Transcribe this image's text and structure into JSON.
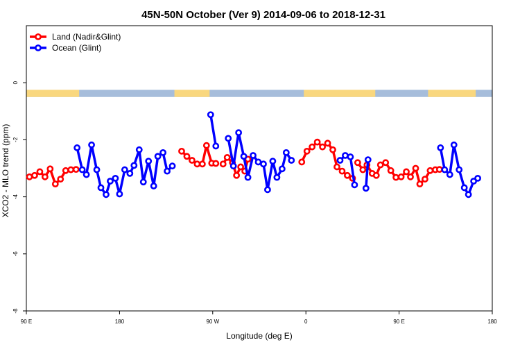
{
  "chart_data": {
    "type": "line",
    "title": "45N-50N October (Ver 9)   2014-09-06 to 2018-12-31",
    "xlabel": "Longitude (deg E)",
    "ylabel": "XCO2 - MLO trend (ppm)",
    "xlim": [
      90,
      540
    ],
    "ylim": [
      -8,
      2
    ],
    "x_ticks": [
      {
        "value": 90,
        "label": "90 E"
      },
      {
        "value": 180,
        "label": "180"
      },
      {
        "value": 270,
        "label": "90 W"
      },
      {
        "value": 360,
        "label": "0"
      },
      {
        "value": 450,
        "label": "90 E"
      },
      {
        "value": 540,
        "label": "180"
      }
    ],
    "y_ticks": [
      {
        "value": 0,
        "label": "0"
      },
      {
        "value": -2,
        "label": "-2"
      },
      {
        "value": -4,
        "label": "-4"
      },
      {
        "value": -6,
        "label": "-6"
      },
      {
        "value": -8,
        "label": "-8"
      }
    ],
    "legend_position": "top-left",
    "map_strip": {
      "y_range": [
        -0.5,
        -0.25
      ],
      "land_color": "#f9d77e",
      "ocean_color": "#a6bddb",
      "land_segments": [
        [
          90,
          141
        ],
        [
          233,
          267
        ],
        [
          358,
          427
        ],
        [
          478,
          524
        ]
      ]
    },
    "series": [
      {
        "name": "Land (Nadir&Glint)",
        "color": "#ff0000",
        "segments": [
          [
            [
              93,
              -3.3
            ],
            [
              98,
              -3.25
            ],
            [
              103,
              -3.12
            ],
            [
              108,
              -3.3
            ],
            [
              113,
              -3.02
            ],
            [
              118,
              -3.55
            ],
            [
              123,
              -3.38
            ],
            [
              128,
              -3.08
            ],
            [
              133,
              -3.05
            ],
            [
              138,
              -3.04
            ]
          ],
          [
            [
              240,
              -2.4
            ],
            [
              245,
              -2.58
            ],
            [
              250,
              -2.72
            ],
            [
              255,
              -2.85
            ],
            [
              260,
              -2.85
            ],
            [
              264,
              -2.2
            ],
            [
              269,
              -2.82
            ],
            [
              273,
              -2.83
            ]
          ],
          [
            [
              280,
              -2.85
            ],
            [
              284,
              -2.62
            ],
            [
              289,
              -2.8
            ],
            [
              293,
              -3.25
            ],
            [
              297,
              -2.95
            ],
            [
              301,
              -3.1
            ],
            [
              304,
              -2.68
            ]
          ],
          [
            [
              356,
              -2.78
            ],
            [
              361,
              -2.4
            ],
            [
              366,
              -2.25
            ],
            [
              371,
              -2.08
            ],
            [
              376,
              -2.25
            ],
            [
              381,
              -2.12
            ],
            [
              386,
              -2.35
            ],
            [
              390,
              -2.95
            ],
            [
              395,
              -3.1
            ],
            [
              400,
              -3.25
            ],
            [
              405,
              -3.35
            ]
          ],
          [
            [
              410,
              -2.8
            ],
            [
              415,
              -3.05
            ],
            [
              419,
              -2.88
            ],
            [
              424,
              -3.18
            ],
            [
              428,
              -3.25
            ],
            [
              432,
              -2.88
            ],
            [
              437,
              -2.8
            ],
            [
              442,
              -3.08
            ],
            [
              447,
              -3.32
            ],
            [
              452,
              -3.3
            ],
            [
              457,
              -3.12
            ],
            [
              461,
              -3.3
            ],
            [
              466,
              -3.0
            ],
            [
              470,
              -3.55
            ],
            [
              475,
              -3.38
            ],
            [
              480,
              -3.08
            ],
            [
              485,
              -3.05
            ],
            [
              489,
              -3.04
            ]
          ]
        ]
      },
      {
        "name": "Ocean (Glint)",
        "color": "#0000ff",
        "segments": [
          [
            [
              139,
              -2.28
            ],
            [
              144,
              -3.05
            ],
            [
              148,
              -3.22
            ],
            [
              153,
              -2.18
            ],
            [
              158,
              -3.05
            ],
            [
              162,
              -3.68
            ],
            [
              167,
              -3.92
            ],
            [
              171,
              -3.45
            ],
            [
              176,
              -3.35
            ],
            [
              180,
              -3.9
            ],
            [
              185,
              -3.05
            ],
            [
              190,
              -3.18
            ],
            [
              194,
              -2.9
            ],
            [
              199,
              -2.35
            ],
            [
              203,
              -3.48
            ],
            [
              208,
              -2.75
            ],
            [
              213,
              -3.62
            ],
            [
              217,
              -2.58
            ],
            [
              222,
              -2.45
            ],
            [
              226,
              -3.1
            ],
            [
              231,
              -2.92
            ]
          ],
          [
            [
              268,
              -1.12
            ],
            [
              273,
              -2.22
            ]
          ],
          [
            [
              285,
              -1.95
            ],
            [
              290,
              -2.92
            ],
            [
              295,
              -1.75
            ],
            [
              300,
              -2.58
            ],
            [
              304,
              -3.32
            ],
            [
              309,
              -2.55
            ],
            [
              314,
              -2.78
            ],
            [
              319,
              -2.85
            ],
            [
              323,
              -3.75
            ],
            [
              328,
              -2.75
            ],
            [
              332,
              -3.32
            ],
            [
              337,
              -3.02
            ],
            [
              341,
              -2.45
            ],
            [
              346,
              -2.72
            ]
          ],
          [
            [
              393,
              -2.72
            ],
            [
              398,
              -2.55
            ],
            [
              403,
              -2.6
            ],
            [
              407,
              -3.58
            ]
          ],
          [
            [
              418,
              -3.7
            ],
            [
              420,
              -2.7
            ]
          ],
          [
            [
              490,
              -2.28
            ],
            [
              494,
              -3.05
            ],
            [
              499,
              -3.22
            ],
            [
              503,
              -2.18
            ],
            [
              508,
              -3.05
            ],
            [
              513,
              -3.68
            ],
            [
              517,
              -3.92
            ],
            [
              522,
              -3.45
            ],
            [
              526,
              -3.35
            ]
          ]
        ]
      }
    ]
  }
}
